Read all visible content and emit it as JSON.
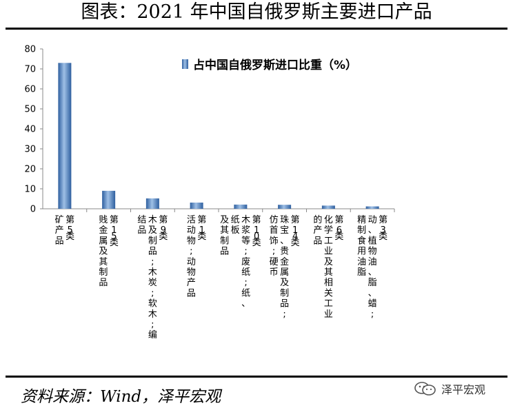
{
  "header": {
    "title": "图表：2021 年中国自俄罗斯主要进口产品"
  },
  "footer": {
    "source": "资料来源：Wind，泽平宏观",
    "watermark": "泽平宏观"
  },
  "colors": {
    "bar_dark": "#2e5f9f",
    "bar_mid": "#4f86c6",
    "bar_light": "#9fc0e6"
  },
  "chart_data": {
    "type": "bar",
    "categories": [
      [
        "第5类",
        "矿产品"
      ],
      [
        "第15类",
        "贱金属及其制品"
      ],
      [
        "第9类",
        "木及制品;木炭;软木;编",
        "结品"
      ],
      [
        "第1类",
        "活动物;动物产品"
      ],
      [
        "第10类",
        "木浆等;废纸;纸、",
        "纸板",
        "及其制品"
      ],
      [
        "第14类",
        "珠宝、贵金属及制品;",
        "仿首饰;硬币"
      ],
      [
        "第6类",
        "化学工业及其相关工业",
        "的产品"
      ],
      [
        "第3类",
        "动、植物油、脂、蜡;",
        "精制食用油脂"
      ]
    ],
    "series": [
      {
        "name": "占中国自俄罗斯进口比重（%）",
        "values": [
          73,
          9,
          5.2,
          3.1,
          2.1,
          2,
          1.6,
          1.2
        ]
      }
    ],
    "ylim": [
      0,
      80
    ],
    "yticks": [
      "0",
      "10",
      "20",
      "30",
      "40",
      "50",
      "60",
      "70",
      "80"
    ],
    "legend_position": "top-right",
    "grid": false
  }
}
